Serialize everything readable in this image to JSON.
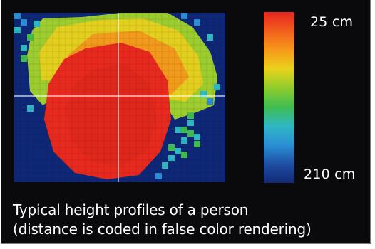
{
  "colorbar": {
    "top_label": "25 cm",
    "bottom_label": "210 cm",
    "colors": [
      "#e8241f",
      "#f2601c",
      "#f79a1a",
      "#e9d21c",
      "#8fcc2c",
      "#3fbd4f",
      "#2eb8c3",
      "#2b8fd6",
      "#1f4fa3",
      "#122a78"
    ]
  },
  "caption": {
    "line1": "Typical height profiles of a person",
    "line2": "(distance is coded in false color rendering)"
  },
  "heatmap": {
    "background": "#0f2777",
    "crosshair_color": "#ffffff"
  }
}
